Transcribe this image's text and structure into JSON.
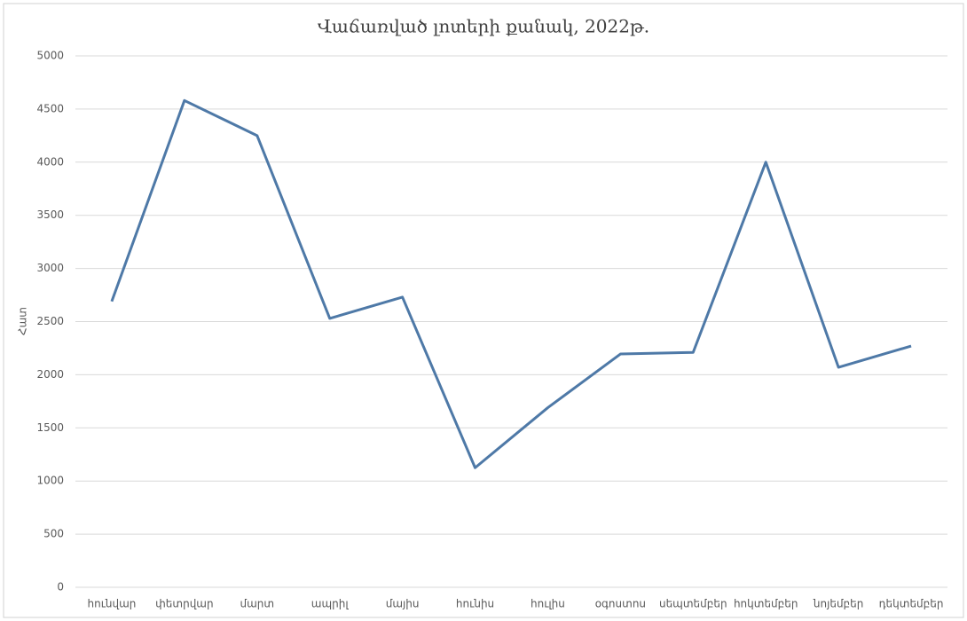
{
  "chart_data": {
    "type": "line",
    "title": "Վաճառված լոտերի քանակ, 2022թ.",
    "y_label": "Հատ",
    "categories": [
      "հունվար",
      "փետրվար",
      "մարտ",
      "ապրիլ",
      "մայիս",
      "հունիս",
      "հուլիս",
      "օգոստոս",
      "սեպտեմբեր",
      "հոկտեմբեր",
      "նոյեմբեր",
      "դեկտեմբեր"
    ],
    "series": [
      {
        "color": "#4e79a7",
        "values": [
          2690,
          4580,
          4250,
          2530,
          2730,
          1125,
          1690,
          2195,
          2210,
          4000,
          2070,
          2270
        ]
      }
    ],
    "ylim": [
      0,
      5000
    ],
    "yticks": [
      0,
      500,
      1000,
      1500,
      2000,
      2500,
      3000,
      3500,
      4000,
      4500,
      5000
    ],
    "grid": true
  }
}
